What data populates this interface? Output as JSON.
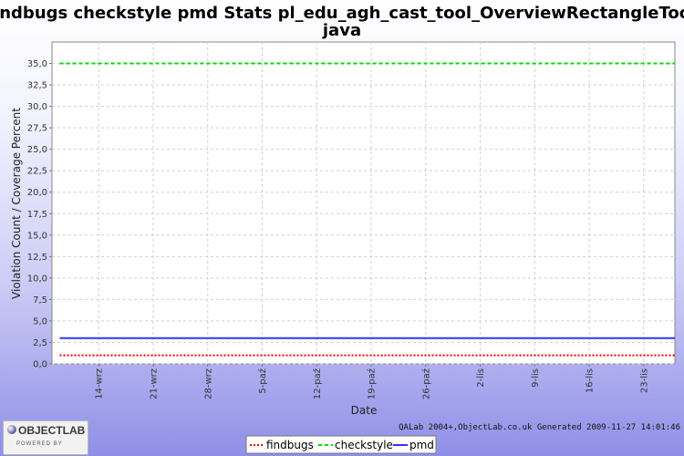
{
  "chart_data": {
    "type": "line",
    "title_line1": "findbugs checkstyle pmd  Stats pl_edu_agh_cast_tool_OverviewRectangleTool.",
    "title_line2": "java",
    "xlabel": "Date",
    "ylabel": "Violation Count / Coverage Percent",
    "ylim": [
      0,
      37.5
    ],
    "y_ticks": [
      0,
      2.5,
      5,
      7.5,
      10,
      12.5,
      15,
      17.5,
      20,
      22.5,
      25,
      27.5,
      30,
      32.5,
      35
    ],
    "y_tick_labels": [
      "0,0",
      "2,5",
      "5,0",
      "7,5",
      "10,0",
      "12,5",
      "15,0",
      "17,5",
      "20,0",
      "22,5",
      "25,0",
      "27,5",
      "30,0",
      "32,5",
      "35,0"
    ],
    "x_range": [
      "2009-09-08",
      "2009-11-27"
    ],
    "x_ticks": [
      "2009-09-14",
      "2009-09-21",
      "2009-09-28",
      "2009-10-05",
      "2009-10-12",
      "2009-10-19",
      "2009-10-26",
      "2009-11-02",
      "2009-11-09",
      "2009-11-16",
      "2009-11-23"
    ],
    "x_tick_labels": [
      "14-wrz",
      "21-wrz",
      "28-wrz",
      "5-paź",
      "12-paź",
      "19-paź",
      "26-paź",
      "2-lis",
      "9-lis",
      "16-lis",
      "23-lis"
    ],
    "grid": true,
    "series": [
      {
        "name": "findbugs",
        "color": "#ff0000",
        "style": "dotted",
        "x": [
          "2009-09-09",
          "2009-11-27"
        ],
        "values": [
          1,
          1
        ]
      },
      {
        "name": "checkstyle",
        "color": "#00dd00",
        "style": "dashed",
        "x": [
          "2009-09-09",
          "2009-11-27"
        ],
        "values": [
          35,
          35
        ]
      },
      {
        "name": "pmd",
        "color": "#3333ff",
        "style": "solid",
        "x": [
          "2009-09-09",
          "2009-11-27"
        ],
        "values": [
          3,
          3
        ]
      }
    ],
    "legend_position": "bottom"
  },
  "footer_text": "QALab 2004+,ObjectLab.co.uk Generated 2009-11-27 14:01:46",
  "logo": {
    "text": "OBJECTLAB",
    "subtext": "POWERED BY"
  }
}
